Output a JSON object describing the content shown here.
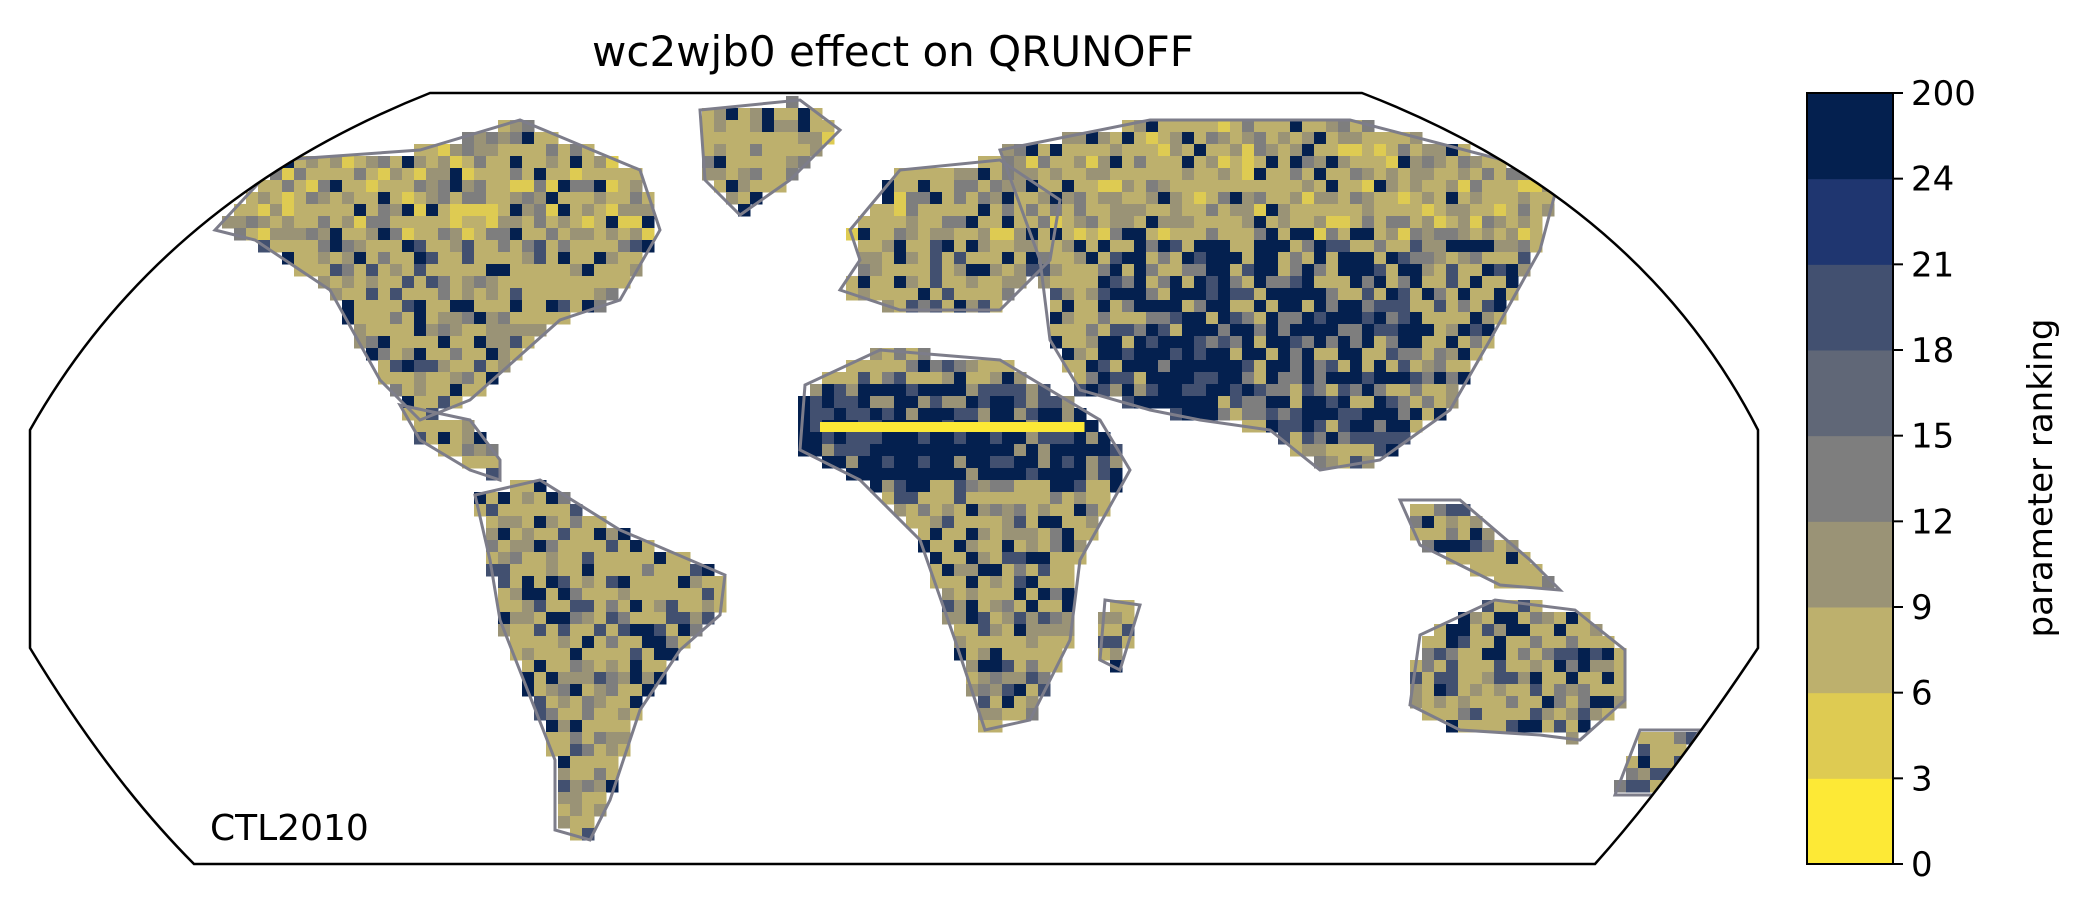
{
  "title": "wc2wjb0 effect on QRUNOFF",
  "corner_label": "CTL2010",
  "colorbar": {
    "label": "parameter ranking",
    "ticks": [
      "0",
      "3",
      "6",
      "9",
      "12",
      "15",
      "18",
      "21",
      "24",
      "200"
    ],
    "colors": [
      "#fde936",
      "#decb52",
      "#bdb06d",
      "#9a9376",
      "#7e7e7e",
      "#606777",
      "#425070",
      "#1f3670",
      "#04204f"
    ]
  },
  "map": {
    "projection": "Robinson",
    "coastline_color": "#7d7d8a",
    "ocean_color": "#ffffff"
  },
  "chart_data": {
    "type": "heatmap",
    "title": "wc2wjb0 effect on QRUNOFF",
    "colorbar_label": "parameter ranking",
    "bin_edges": [
      0,
      3,
      6,
      9,
      12,
      15,
      18,
      21,
      24,
      200
    ]
  }
}
